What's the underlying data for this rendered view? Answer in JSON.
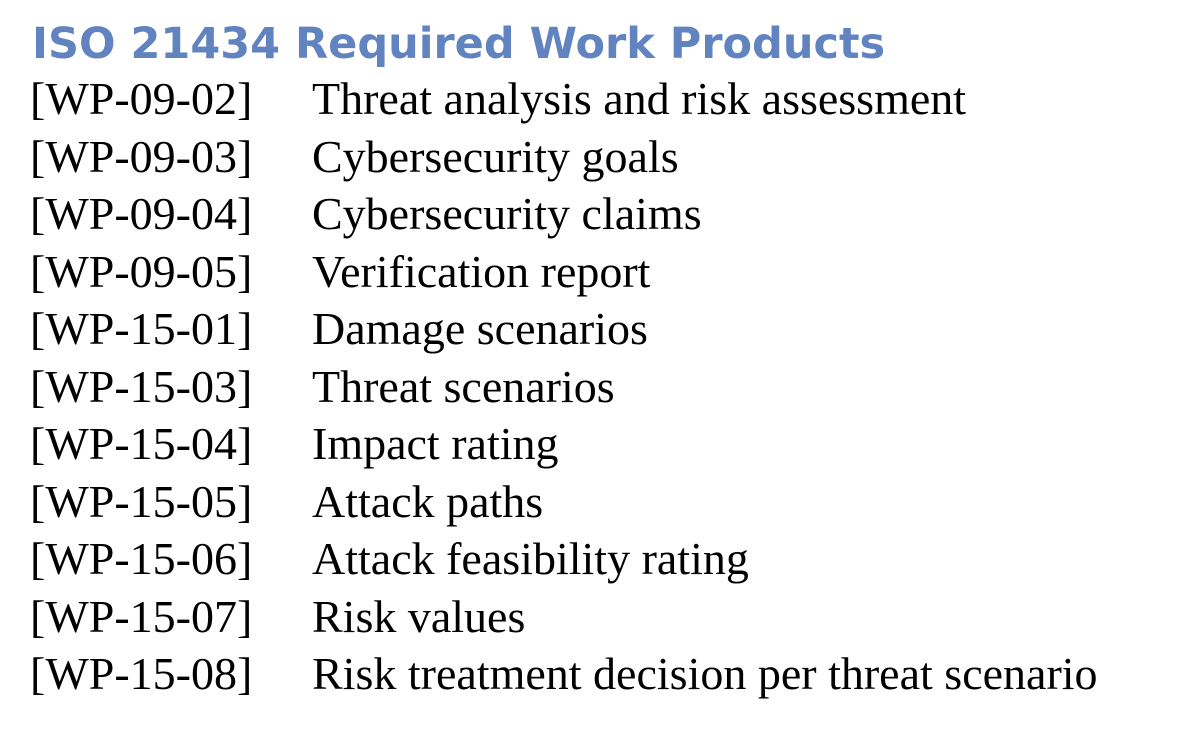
{
  "title": "ISO 21434 Required Work Products",
  "work_products": [
    {
      "code": "[WP-09-02]",
      "description": "Threat analysis and risk assessment"
    },
    {
      "code": "[WP-09-03]",
      "description": "Cybersecurity goals"
    },
    {
      "code": "[WP-09-04]",
      "description": "Cybersecurity claims"
    },
    {
      "code": "[WP-09-05]",
      "description": "Verification report"
    },
    {
      "code": "[WP-15-01]",
      "description": "Damage scenarios"
    },
    {
      "code": "[WP-15-03]",
      "description": "Threat scenarios"
    },
    {
      "code": "[WP-15-04]",
      "description": "Impact rating"
    },
    {
      "code": "[WP-15-05]",
      "description": "Attack paths"
    },
    {
      "code": "[WP-15-06]",
      "description": "Attack feasibility rating"
    },
    {
      "code": "[WP-15-07]",
      "description": "Risk values"
    },
    {
      "code": "[WP-15-08]",
      "description": "Risk treatment decision per threat scenario"
    }
  ],
  "colors": {
    "title": "#6183bf",
    "text": "#000000",
    "background": "#ffffff"
  }
}
